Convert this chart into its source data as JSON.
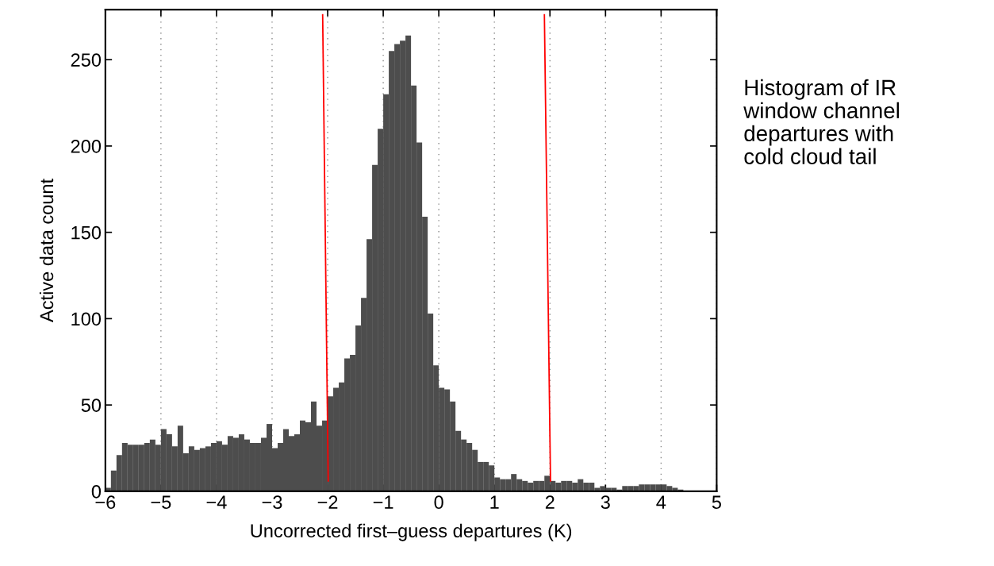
{
  "chart_data": {
    "type": "histogram",
    "xlabel": "Uncorrected first–guess departures (K)",
    "ylabel": "Active data count",
    "annotations": [
      "Histogram of IR\nwindow channel\ndepartures with\ncold cloud tail"
    ],
    "series": [
      {
        "color": "#4d4d4d",
        "bins": [
          -6.0,
          -5.9,
          -5.8,
          -5.7,
          -5.6,
          -5.5,
          -5.4,
          -5.3,
          -5.2,
          -5.1,
          -5.0,
          -4.9,
          -4.8,
          -4.7,
          -4.6,
          -4.5,
          -4.4,
          -4.3,
          -4.2,
          -4.1,
          -4.0,
          -3.9,
          -3.8,
          -3.7,
          -3.6,
          -3.5,
          -3.4,
          -3.3,
          -3.2,
          -3.1,
          -3.0,
          -2.9,
          -2.8,
          -2.7,
          -2.6,
          -2.5,
          -2.4,
          -2.3,
          -2.2,
          -2.1,
          -2.0,
          -1.9,
          -1.8,
          -1.7,
          -1.6,
          -1.5,
          -1.4,
          -1.3,
          -1.2,
          -1.1,
          -1.0,
          -0.9,
          -0.8,
          -0.7,
          -0.6,
          -0.5,
          -0.4,
          -0.3,
          -0.2,
          -0.1,
          0.0,
          0.1,
          0.2,
          0.3,
          0.4,
          0.5,
          0.6,
          0.7,
          0.8,
          0.9,
          1.0,
          1.1,
          1.2,
          1.3,
          1.4,
          1.5,
          1.6,
          1.7,
          1.8,
          1.9,
          2.0,
          2.1,
          2.2,
          2.3,
          2.4,
          2.5,
          2.6,
          2.7,
          2.8,
          2.9,
          3.0,
          3.1,
          3.2,
          3.3,
          3.4,
          3.5,
          3.6,
          3.7,
          3.8,
          3.9,
          4.0,
          4.1,
          4.2,
          4.3,
          4.4
        ],
        "values": [
          2,
          12,
          21,
          28,
          27,
          27,
          27,
          28,
          30,
          27,
          36,
          33,
          26,
          38,
          22,
          26,
          24,
          25,
          26,
          28,
          29,
          27,
          32,
          31,
          33,
          30,
          28,
          28,
          31,
          39,
          25,
          28,
          36,
          32,
          33,
          41,
          40,
          52,
          38,
          41,
          55,
          60,
          63,
          77,
          79,
          96,
          112,
          146,
          189,
          210,
          230,
          255,
          259,
          261,
          264,
          235,
          202,
          159,
          103,
          73,
          60,
          59,
          52,
          35,
          30,
          28,
          24,
          17,
          17,
          15,
          8,
          7,
          7,
          10,
          7,
          6,
          5,
          6,
          6,
          9,
          6,
          5,
          6,
          6,
          5,
          7,
          5,
          5,
          2,
          3,
          2,
          2,
          1,
          3,
          3,
          3,
          4,
          4,
          4,
          4,
          4,
          3,
          2,
          1
        ]
      },
      {
        "type": "line",
        "color": "#ff0000",
        "x": [
          -2.09,
          -1.99
        ],
        "values": [
          276,
          6
        ]
      },
      {
        "type": "line",
        "color": "#ff0000",
        "x": [
          1.9,
          2.01
        ],
        "values": [
          276,
          6
        ]
      }
    ],
    "xlim": [
      -6,
      5
    ],
    "xticks": [
      {
        "value": -6,
        "label": "−6"
      },
      {
        "value": -5,
        "label": "−5"
      },
      {
        "value": -4,
        "label": "−4"
      },
      {
        "value": -3,
        "label": "−3"
      },
      {
        "value": -2,
        "label": "−2"
      },
      {
        "value": -1,
        "label": "−1"
      },
      0,
      1,
      2,
      3,
      4,
      5
    ],
    "ylim": [
      0,
      279
    ],
    "yticks": [
      0,
      50,
      100,
      150,
      200,
      250
    ],
    "grid": "x"
  }
}
